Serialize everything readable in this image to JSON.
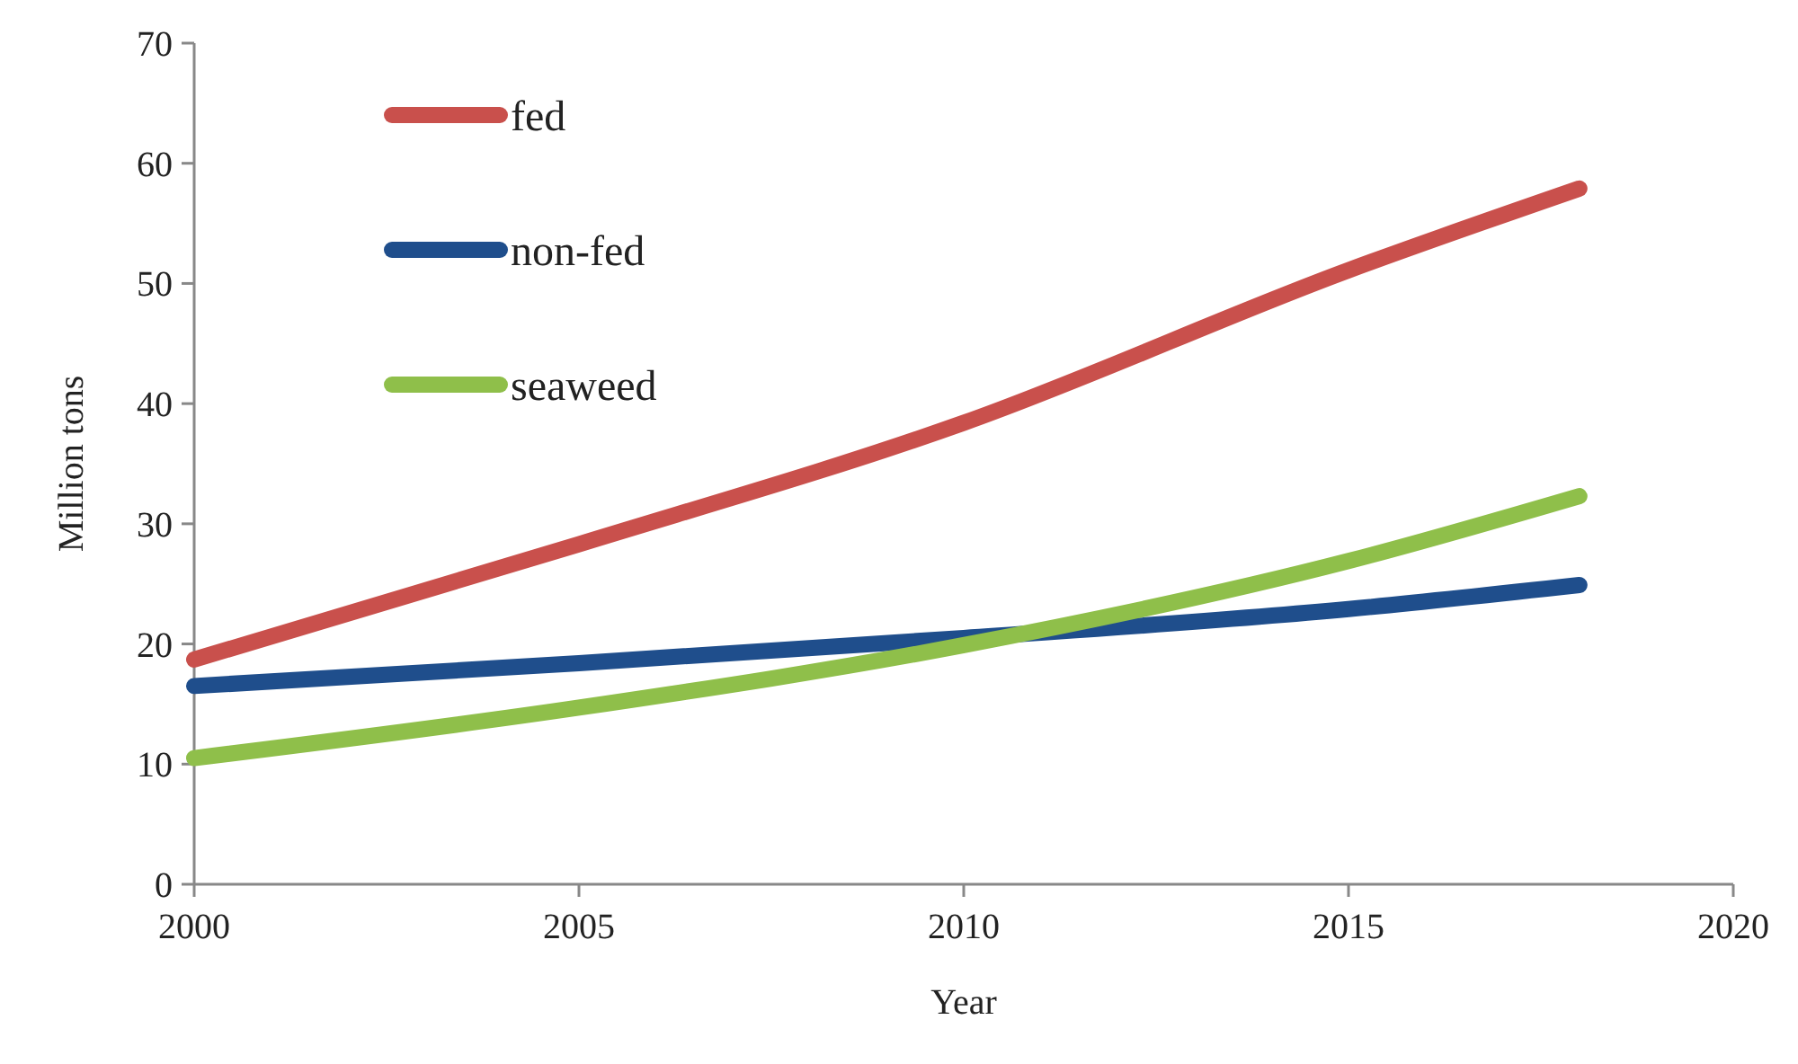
{
  "chart_data": {
    "type": "line",
    "xlabel": "Year",
    "ylabel": "Million tons",
    "xlim": [
      2000,
      2020
    ],
    "xticks": [
      2000,
      2005,
      2010,
      2015,
      2020
    ],
    "ylim": [
      0,
      70
    ],
    "yticks": [
      0,
      10,
      20,
      30,
      40,
      50,
      60,
      70
    ],
    "grid": false,
    "legend": "top left",
    "marker": "none",
    "line_style": "solid",
    "series": [
      {
        "name": "fed",
        "color": "#c9504c",
        "x": [
          2000,
          2005,
          2010,
          2015,
          2018
        ],
        "values": [
          18.7,
          28.3,
          38.4,
          51.1,
          57.9
        ]
      },
      {
        "name": "non-fed",
        "color": "#1f4e8c",
        "x": [
          2000,
          2005,
          2010,
          2015,
          2018
        ],
        "values": [
          16.5,
          18.4,
          20.5,
          22.9,
          24.9
        ]
      },
      {
        "name": "seaweed",
        "color": "#8fbf4a",
        "x": [
          2000,
          2005,
          2010,
          2015,
          2018
        ],
        "values": [
          10.5,
          14.7,
          19.9,
          26.9,
          32.3
        ]
      }
    ]
  }
}
